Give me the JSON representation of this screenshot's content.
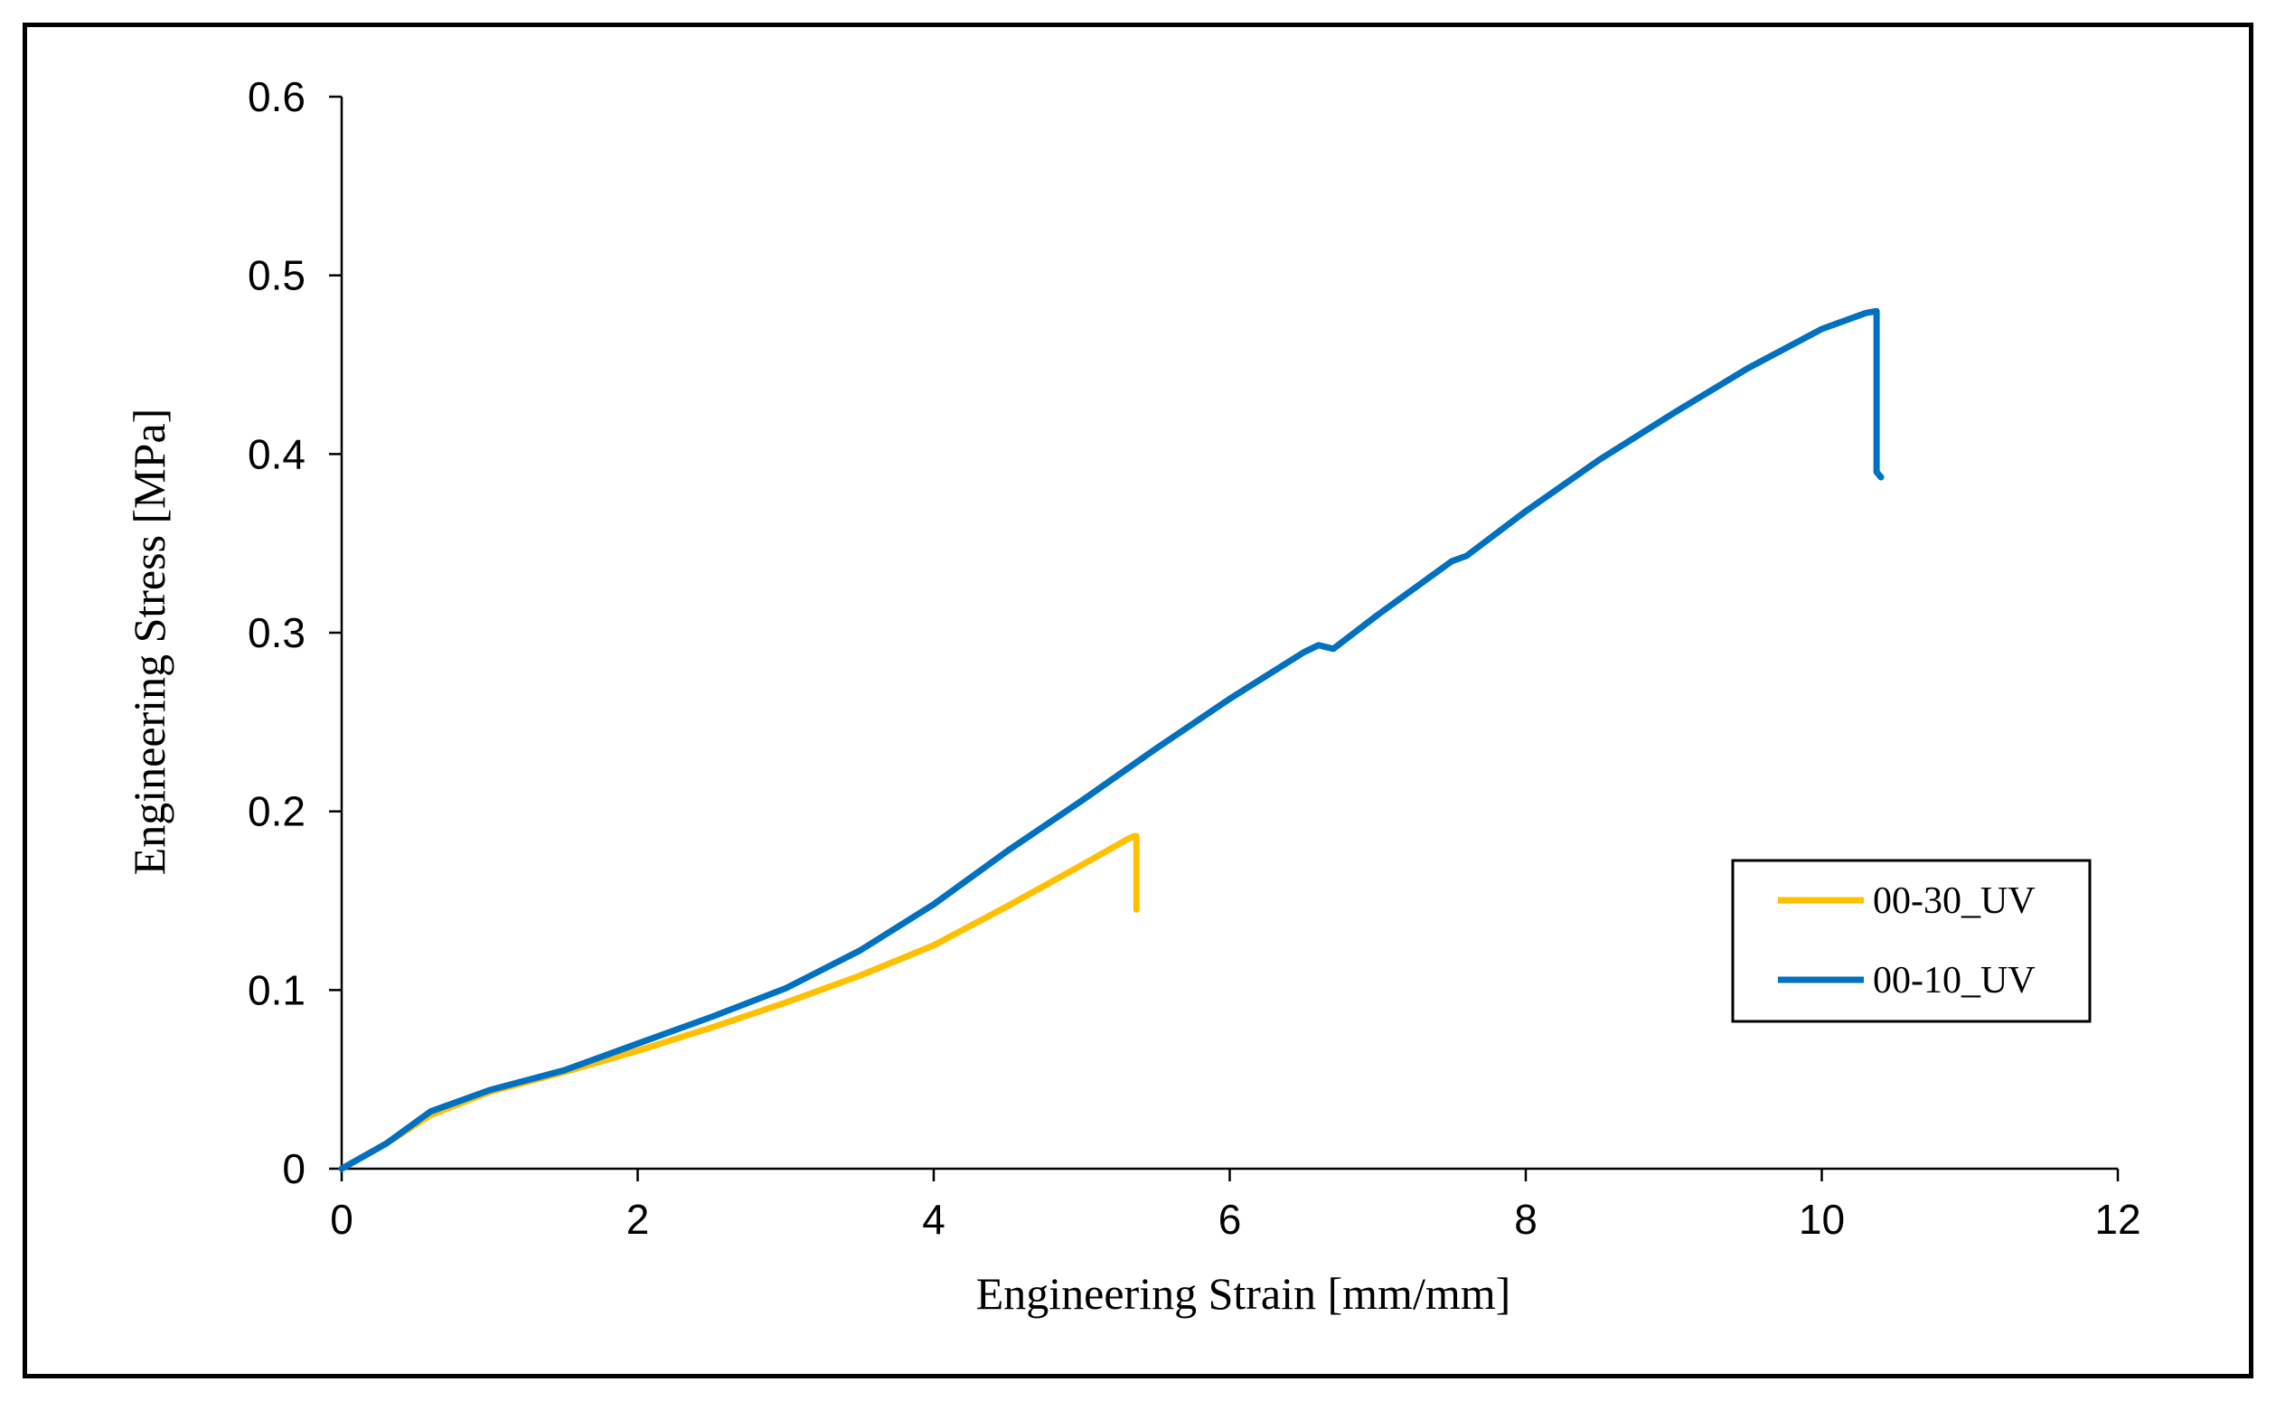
{
  "chart_data": {
    "type": "line",
    "title": "",
    "xlabel": "Engineering Strain [mm/mm]",
    "ylabel": "Engineering Stress  [MPa]",
    "xlim": [
      0,
      12
    ],
    "ylim": [
      0,
      0.6
    ],
    "xticks": [
      0,
      2,
      4,
      6,
      8,
      10,
      12
    ],
    "yticks": [
      0,
      0.1,
      0.2,
      0.3,
      0.4,
      0.5,
      0.6
    ],
    "xtick_labels": [
      "0",
      "2",
      "4",
      "6",
      "8",
      "10",
      "12"
    ],
    "ytick_labels": [
      "0",
      "0.1",
      "0.2",
      "0.3",
      "0.4",
      "0.5",
      "0.6"
    ],
    "grid": false,
    "legend_position": "right",
    "series": [
      {
        "name": "00-30_UV",
        "color": "#FFC000",
        "x": [
          0,
          0.3,
          0.6,
          1.0,
          1.5,
          2.0,
          2.5,
          3.0,
          3.5,
          4.0,
          4.5,
          5.0,
          5.3,
          5.35,
          5.37,
          5.37
        ],
        "y": [
          0,
          0.014,
          0.03,
          0.043,
          0.054,
          0.066,
          0.079,
          0.093,
          0.108,
          0.125,
          0.147,
          0.17,
          0.184,
          0.186,
          0.186,
          0.145
        ]
      },
      {
        "name": "00-10_UV",
        "color": "#0070C0",
        "x": [
          0,
          0.3,
          0.6,
          1.0,
          1.5,
          2.0,
          2.5,
          3.0,
          3.5,
          4.0,
          4.5,
          5.0,
          5.5,
          6.0,
          6.5,
          6.6,
          6.7,
          7.0,
          7.5,
          7.6,
          8.0,
          8.5,
          9.0,
          9.5,
          10.0,
          10.3,
          10.37,
          10.37,
          10.4
        ],
        "y": [
          0,
          0.014,
          0.032,
          0.044,
          0.055,
          0.07,
          0.085,
          0.101,
          0.122,
          0.148,
          0.178,
          0.206,
          0.235,
          0.263,
          0.289,
          0.293,
          0.291,
          0.31,
          0.34,
          0.343,
          0.368,
          0.397,
          0.423,
          0.448,
          0.47,
          0.479,
          0.48,
          0.39,
          0.387
        ]
      }
    ]
  }
}
